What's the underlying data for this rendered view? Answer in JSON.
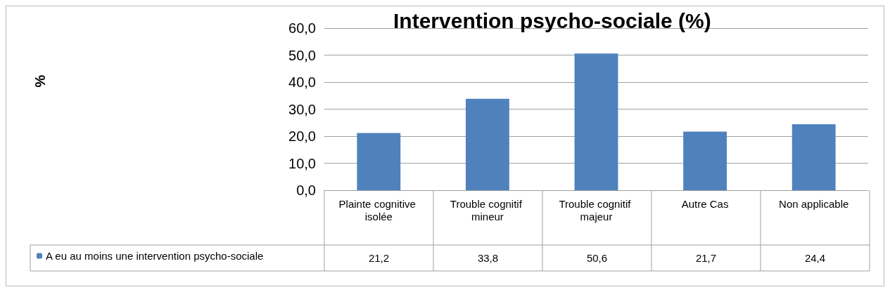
{
  "chart_data": {
    "type": "bar",
    "title": "Intervention psycho-sociale (%)",
    "annotations": [
      "%"
    ],
    "categories": [
      "Plainte cognitive isolée",
      "Trouble cognitif mineur",
      "Trouble cognitif majeur",
      "Autre Cas",
      "Non applicable"
    ],
    "series": [
      {
        "name": "A eu au moins une intervention psycho-sociale",
        "color": "#4f81bd",
        "values": [
          21.2,
          33.8,
          50.6,
          21.7,
          24.4
        ],
        "value_labels": [
          "21,2",
          "33,8",
          "50,6",
          "21,7",
          "24,4"
        ]
      }
    ],
    "ylim": [
      0,
      60
    ],
    "yticks": [
      {
        "value": 0,
        "label": "0,0"
      },
      {
        "value": 10,
        "label": "10,0"
      },
      {
        "value": 20,
        "label": "20,0"
      },
      {
        "value": 30,
        "label": "30,0"
      },
      {
        "value": 40,
        "label": "40,0"
      },
      {
        "value": 50,
        "label": "50,0"
      },
      {
        "value": 60,
        "label": "60,0"
      }
    ],
    "grid": "y",
    "legend": "bottom"
  }
}
